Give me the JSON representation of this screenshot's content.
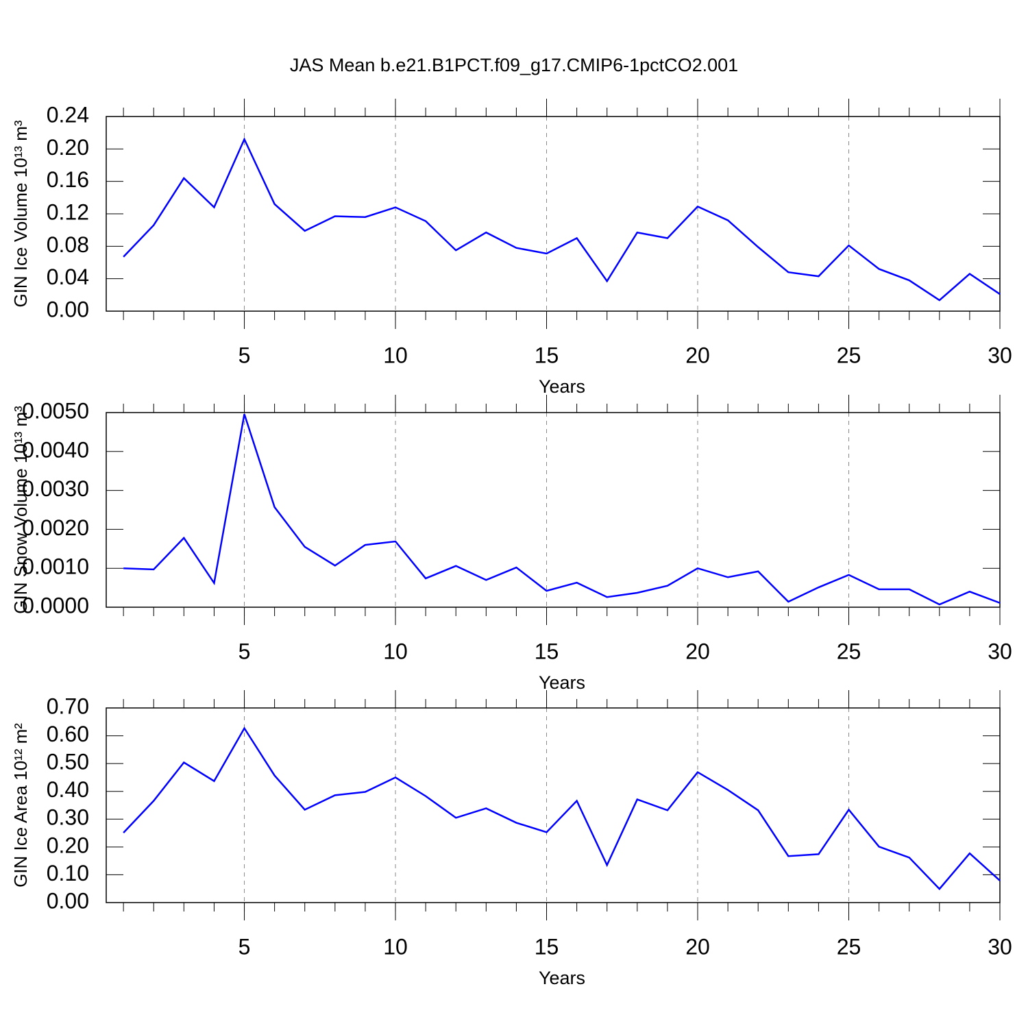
{
  "chart_data": [
    {
      "type": "line",
      "title": "JAS Mean b.e21.B1PCT.f09_g17.CMIP6-1pctCO2.001",
      "ylabel": "GIN Ice Volume 10¹³ m³",
      "xlabel": "Years",
      "x": [
        1,
        2,
        3,
        4,
        5,
        6,
        7,
        8,
        9,
        10,
        11,
        12,
        13,
        14,
        15,
        16,
        17,
        18,
        19,
        20,
        21,
        22,
        23,
        24,
        25,
        26,
        27,
        28,
        29,
        30
      ],
      "series": [
        {
          "color": "#0000ff",
          "values": [
            0.067,
            0.106,
            0.164,
            0.128,
            0.212,
            0.132,
            0.099,
            0.117,
            0.116,
            0.128,
            0.111,
            0.075,
            0.097,
            0.078,
            0.071,
            0.09,
            0.037,
            0.097,
            0.09,
            0.129,
            0.112,
            0.079,
            0.048,
            0.043,
            0.081,
            0.052,
            0.038,
            0.0135,
            0.046,
            0.021
          ]
        }
      ],
      "xlim": [
        0.43,
        30
      ],
      "xticks": [
        5,
        10,
        15,
        20,
        25,
        30
      ],
      "ylim": [
        0,
        0.24
      ],
      "yticks": [
        {
          "value": 0,
          "label": "0.00"
        },
        0.04,
        0.08,
        0.12,
        0.16,
        {
          "value": 0.2,
          "label": "0.20"
        },
        0.24
      ],
      "grid": "x-dashed"
    },
    {
      "type": "line",
      "ylabel": "GIN Snow Volume 10¹³ m³",
      "xlabel": "Years",
      "x": [
        1,
        2,
        3,
        4,
        5,
        6,
        7,
        8,
        9,
        10,
        11,
        12,
        13,
        14,
        15,
        16,
        17,
        18,
        19,
        20,
        21,
        22,
        23,
        24,
        25,
        26,
        27,
        28,
        29,
        30
      ],
      "series": [
        {
          "color": "#0000ff",
          "values": [
            0.001,
            0.00097,
            0.00178,
            0.00062,
            0.00496,
            0.00257,
            0.00155,
            0.00107,
            0.0016,
            0.00169,
            0.00074,
            0.00106,
            0.0007,
            0.00102,
            0.00042,
            0.00063,
            0.00026,
            0.00037,
            0.00055,
            0.001,
            0.00077,
            0.00092,
            0.00014,
            0.00051,
            0.00083,
            0.00046,
            0.00046,
            7e-05,
            0.0004,
            0.00011
          ]
        }
      ],
      "xlim": [
        0.43,
        30
      ],
      "xticks": [
        5,
        10,
        15,
        20,
        25,
        30
      ],
      "ylim": [
        0,
        0.005
      ],
      "yticks": [
        {
          "value": 0,
          "label": "0.0000"
        },
        {
          "value": 0.001,
          "label": "0.0010"
        },
        {
          "value": 0.002,
          "label": "0.0020"
        },
        {
          "value": 0.003,
          "label": "0.0030"
        },
        {
          "value": 0.004,
          "label": "0.0040"
        },
        {
          "value": 0.005,
          "label": "0.0050"
        }
      ],
      "grid": "x-dashed"
    },
    {
      "type": "line",
      "ylabel": "GIN Ice Area 10¹² m²",
      "xlabel": "Years",
      "x": [
        1,
        2,
        3,
        4,
        5,
        6,
        7,
        8,
        9,
        10,
        11,
        12,
        13,
        14,
        15,
        16,
        17,
        18,
        19,
        20,
        21,
        22,
        23,
        24,
        25,
        26,
        27,
        28,
        29,
        30
      ],
      "series": [
        {
          "color": "#0000ff",
          "values": [
            0.251,
            0.366,
            0.504,
            0.437,
            0.627,
            0.457,
            0.334,
            0.386,
            0.398,
            0.45,
            0.383,
            0.305,
            0.339,
            0.287,
            0.253,
            0.366,
            0.135,
            0.371,
            0.332,
            0.469,
            0.405,
            0.332,
            0.167,
            0.174,
            0.334,
            0.201,
            0.162,
            0.049,
            0.177,
            0.079
          ]
        }
      ],
      "xlim": [
        0.43,
        30
      ],
      "xticks": [
        5,
        10,
        15,
        20,
        25,
        30
      ],
      "ylim": [
        0,
        0.7
      ],
      "yticks": [
        {
          "value": 0,
          "label": "0.00"
        },
        {
          "value": 0.1,
          "label": "0.10"
        },
        {
          "value": 0.2,
          "label": "0.20"
        },
        {
          "value": 0.3,
          "label": "0.30"
        },
        {
          "value": 0.4,
          "label": "0.40"
        },
        {
          "value": 0.5,
          "label": "0.50"
        },
        {
          "value": 0.6,
          "label": "0.60"
        },
        {
          "value": 0.7,
          "label": "0.70"
        }
      ],
      "grid": "x-dashed"
    }
  ]
}
